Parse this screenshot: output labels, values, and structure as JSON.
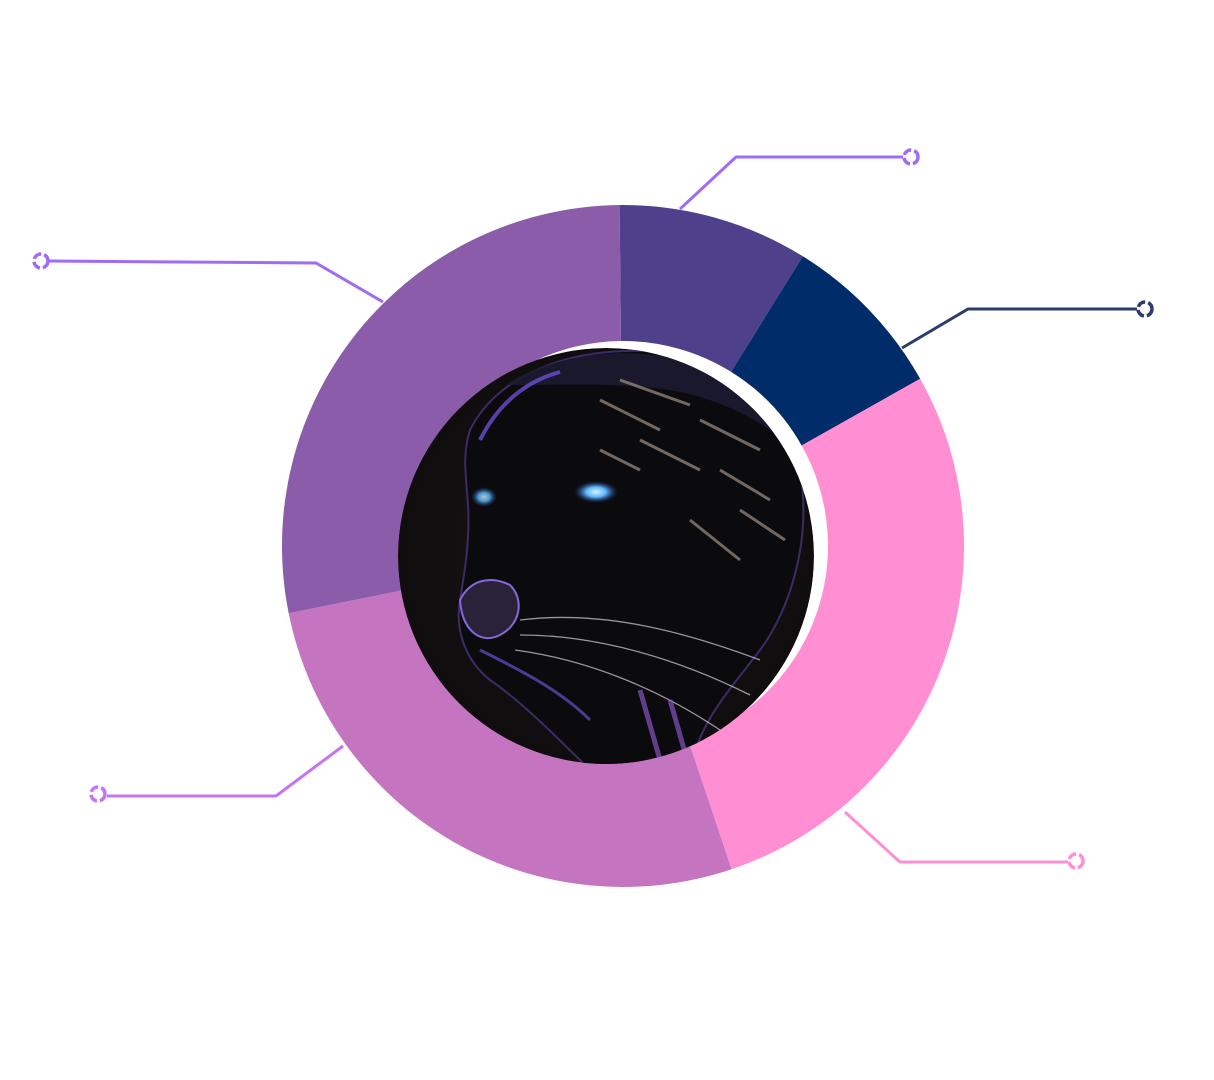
{
  "chart_data": {
    "type": "pie",
    "variant": "donut",
    "slices": [
      {
        "value": 9,
        "color": "#4f408b"
      },
      {
        "value": 8,
        "color": "#002c6a"
      },
      {
        "value": 28,
        "color": "#ff8fd2"
      },
      {
        "value": 27,
        "color": "#c574bf"
      },
      {
        "value": 28,
        "color": "#8a5caa"
      }
    ],
    "callout_colors": [
      "#a06cf2",
      "#2d3c6a",
      "#ff8fd2",
      "#c574f2",
      "#a06cf2"
    ],
    "center_image": "panther-head-illustration"
  }
}
